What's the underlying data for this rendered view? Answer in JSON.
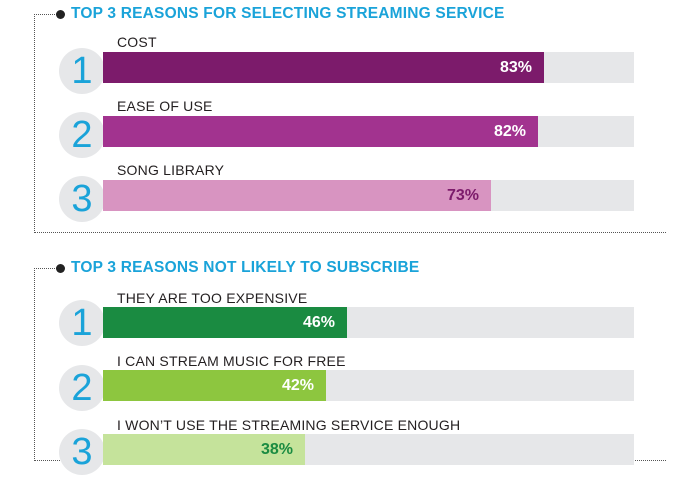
{
  "chart_data": [
    {
      "type": "bar",
      "title": "TOP 3 REASONS FOR SELECTING STREAMING SERVICE",
      "rank_labels": [
        "1",
        "2",
        "3"
      ],
      "categories": [
        "COST",
        "EASE OF USE",
        "SONG LIBRARY"
      ],
      "values": [
        83,
        82,
        73
      ],
      "value_labels": [
        "83%",
        "82%",
        "73%"
      ],
      "unit": "%",
      "ylim": [
        0,
        100
      ],
      "colors": [
        "#7c1b6b",
        "#a2338f",
        "#d894c1"
      ],
      "label_colors": [
        "#ffffff",
        "#ffffff",
        "#7c1b6b"
      ]
    },
    {
      "type": "bar",
      "title": "TOP 3 REASONS NOT LIKELY TO SUBSCRIBE",
      "rank_labels": [
        "1",
        "2",
        "3"
      ],
      "categories": [
        "THEY ARE TOO EXPENSIVE",
        "I CAN STREAM MUSIC FOR FREE",
        "I WON’T USE THE STREAMING SERVICE ENOUGH"
      ],
      "values": [
        46,
        42,
        38
      ],
      "value_labels": [
        "46%",
        "42%",
        "38%"
      ],
      "unit": "%",
      "ylim": [
        0,
        100
      ],
      "colors": [
        "#1a8b41",
        "#8dc63f",
        "#c5e39b"
      ],
      "label_colors": [
        "#ffffff",
        "#ffffff",
        "#1a8b41"
      ]
    }
  ],
  "colors": {
    "title": "#1aa3d9",
    "track": "#e6e7e9",
    "rank_circle": "#e6e7e9"
  }
}
